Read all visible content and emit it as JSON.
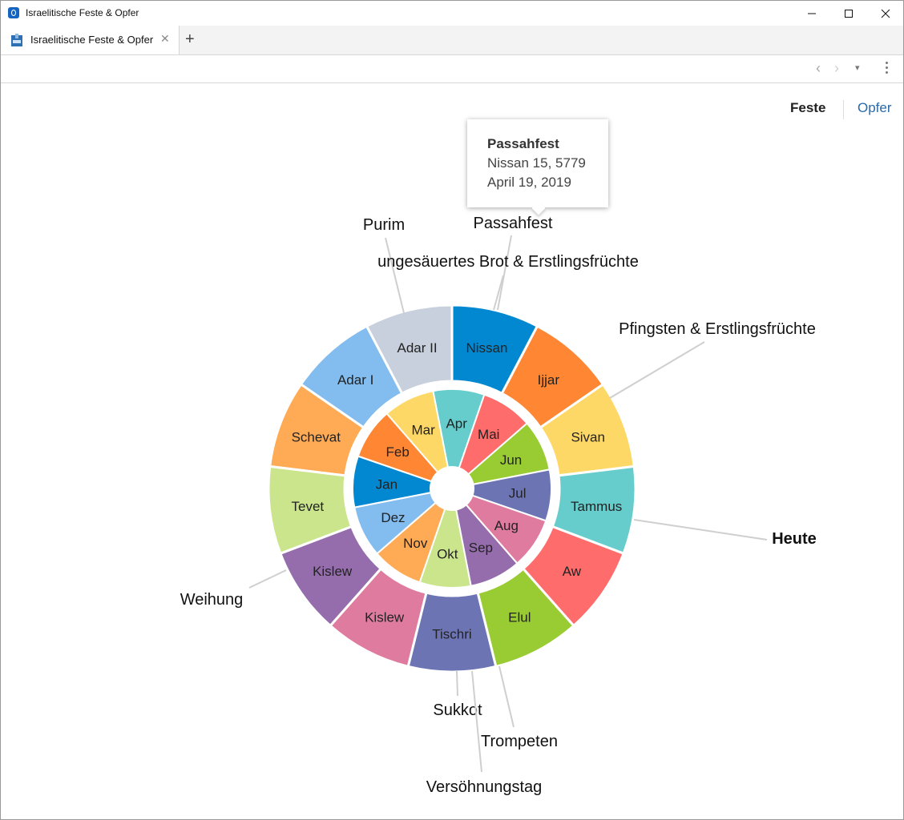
{
  "window": {
    "title": "Israelitische Feste & Opfer"
  },
  "tab": {
    "label": "Israelitische Feste & Opfer"
  },
  "view_tabs": {
    "feste": "Feste",
    "opfer": "Opfer"
  },
  "tooltip": {
    "title": "Passahfest",
    "line1": "Nissan 15, 5779",
    "line2": "April 19, 2019"
  },
  "hebrew_months": [
    {
      "label": "Nissan",
      "color": "#0288d1"
    },
    {
      "label": "Ijjar",
      "color": "#ff8633"
    },
    {
      "label": "Sivan",
      "color": "#fed866"
    },
    {
      "label": "Tammus",
      "color": "#66cdcc"
    },
    {
      "label": "Aw",
      "color": "#fe6c6c"
    },
    {
      "label": "Elul",
      "color": "#99cc33"
    },
    {
      "label": "Tischri",
      "color": "#6d74b4"
    },
    {
      "label": "Kislew",
      "color": "#e07ba0"
    },
    {
      "label": "Kislew",
      "color": "#956dad"
    },
    {
      "label": "Tevet",
      "color": "#cbe58d"
    },
    {
      "label": "Schevat",
      "color": "#ffaa55"
    },
    {
      "label": "Adar I",
      "color": "#83bcef"
    },
    {
      "label": "Adar II",
      "color": "#c8d0dd"
    }
  ],
  "gregorian_months": [
    {
      "label": "Apr",
      "color": "#66cdcc"
    },
    {
      "label": "Mai",
      "color": "#fe6c6c"
    },
    {
      "label": "Jun",
      "color": "#99cc33"
    },
    {
      "label": "Jul",
      "color": "#6d74b4"
    },
    {
      "label": "Aug",
      "color": "#e07ba0"
    },
    {
      "label": "Sep",
      "color": "#956dad"
    },
    {
      "label": "Okt",
      "color": "#cbe58d"
    },
    {
      "label": "Nov",
      "color": "#ffaa55"
    },
    {
      "label": "Dez",
      "color": "#83bcef"
    },
    {
      "label": "Jan",
      "color": "#0288d1"
    },
    {
      "label": "Feb",
      "color": "#ff8633"
    },
    {
      "label": "Mar",
      "color": "#fed866"
    }
  ],
  "feasts": [
    {
      "label": "Purim",
      "bold": false
    },
    {
      "label": "Passahfest",
      "bold": false
    },
    {
      "label": "ungesäuertes Brot & Erstlingsfrüchte",
      "bold": false
    },
    {
      "label": "Pfingsten & Erstlingsfrüchte",
      "bold": false
    },
    {
      "label": "Heute",
      "bold": true
    },
    {
      "label": "Weihung",
      "bold": false
    },
    {
      "label": "Sukkot",
      "bold": false
    },
    {
      "label": "Trompeten",
      "bold": false
    },
    {
      "label": "Versöhnungstag",
      "bold": false
    }
  ]
}
